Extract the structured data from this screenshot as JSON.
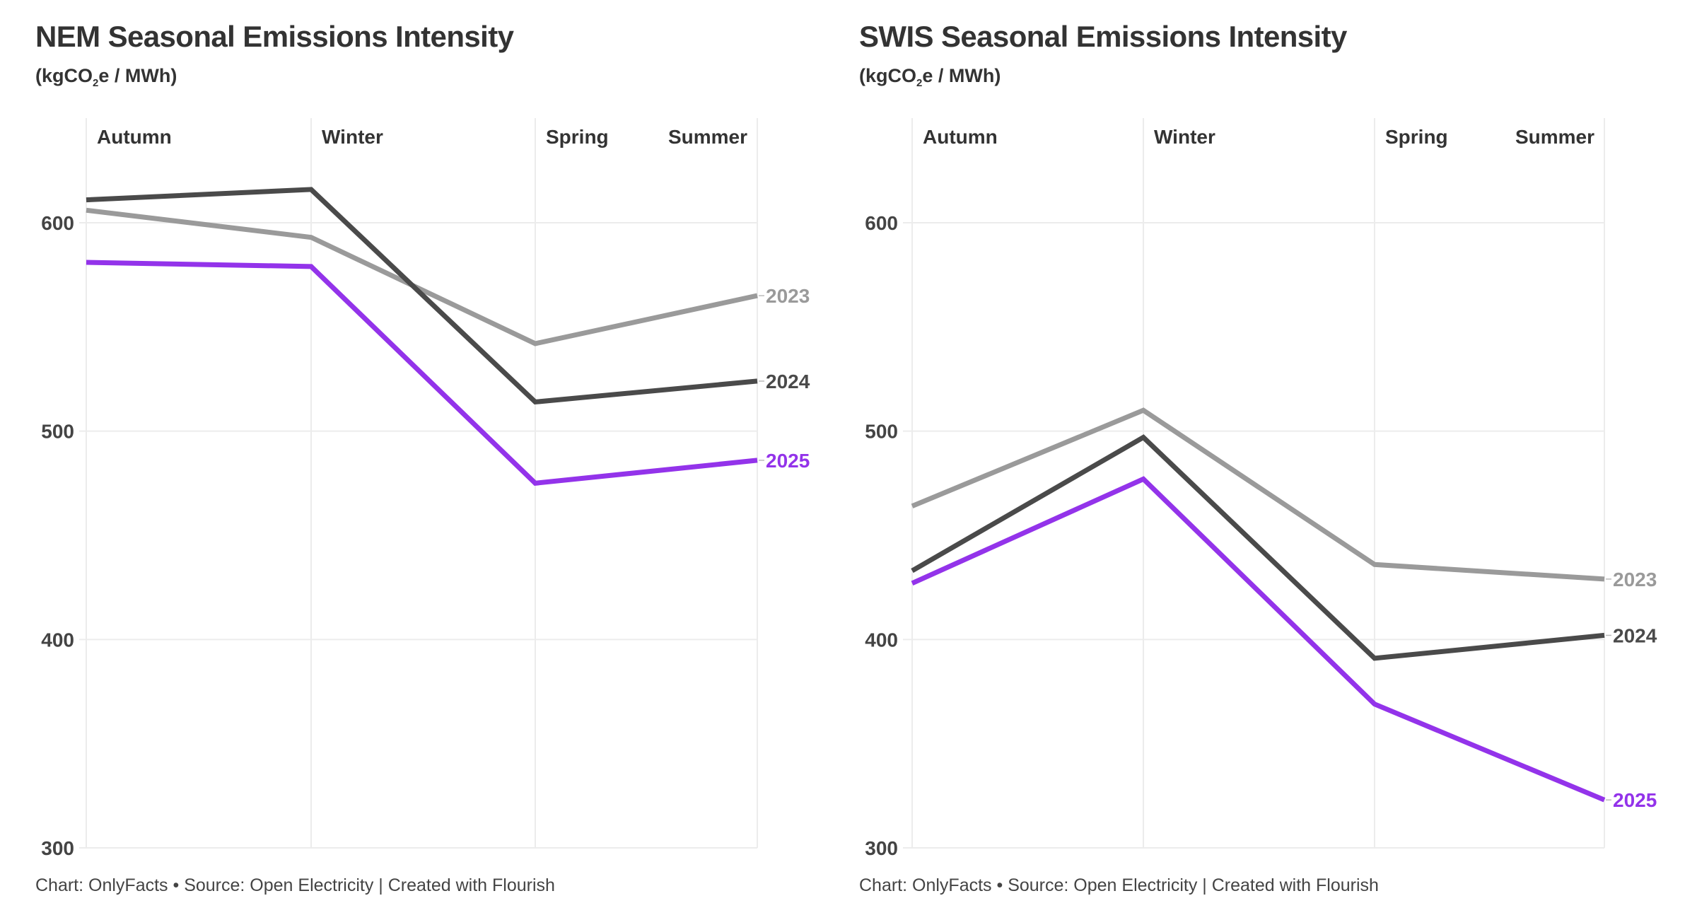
{
  "footer_text": "Chart: OnlyFacts • Source: Open Electricity | Created with Flourish",
  "subtitle": {
    "pre": "(kgCO",
    "sub": "2",
    "post": "e / MWh)"
  },
  "colors": {
    "2023": "#9a9a9a",
    "2024": "#4a4a4a",
    "2025": "#9333ea",
    "grid": "#ececec",
    "text": "#333333"
  },
  "chart_data": [
    {
      "type": "line",
      "title": "NEM Seasonal Emissions Intensity",
      "subtitle": "(kgCO2e / MWh)",
      "xlabel": "",
      "ylabel": "kgCO2e / MWh",
      "categories": [
        "Autumn",
        "Winter",
        "Spring",
        "Summer"
      ],
      "yticks": [
        300,
        400,
        500,
        600
      ],
      "ylim": [
        300,
        650
      ],
      "grid": true,
      "legend": "direct-labels-right",
      "series": [
        {
          "name": "2023",
          "values": [
            606,
            593,
            542,
            565
          ]
        },
        {
          "name": "2024",
          "values": [
            611,
            616,
            514,
            524
          ]
        },
        {
          "name": "2025",
          "values": [
            581,
            579,
            475,
            486
          ]
        }
      ]
    },
    {
      "type": "line",
      "title": "SWIS Seasonal Emissions Intensity",
      "subtitle": "(kgCO2e / MWh)",
      "xlabel": "",
      "ylabel": "kgCO2e / MWh",
      "categories": [
        "Autumn",
        "Winter",
        "Spring",
        "Summer"
      ],
      "yticks": [
        300,
        400,
        500,
        600
      ],
      "ylim": [
        300,
        650
      ],
      "grid": true,
      "legend": "direct-labels-right",
      "series": [
        {
          "name": "2023",
          "values": [
            464,
            510,
            436,
            429
          ]
        },
        {
          "name": "2024",
          "values": [
            433,
            497,
            391,
            402
          ]
        },
        {
          "name": "2025",
          "values": [
            427,
            477,
            369,
            323
          ]
        }
      ]
    }
  ]
}
